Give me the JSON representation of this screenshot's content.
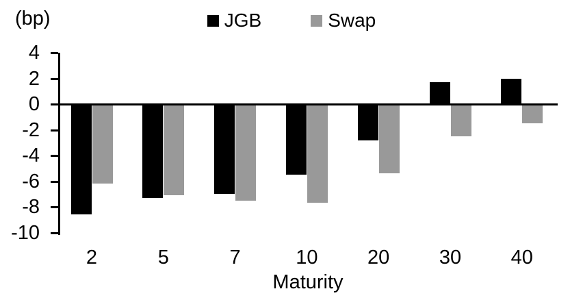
{
  "chart_data": {
    "type": "bar",
    "title": "",
    "unit_label": "(bp)",
    "xlabel": "Maturity",
    "categories": [
      "2",
      "5",
      "7",
      "10",
      "20",
      "30",
      "40"
    ],
    "series": [
      {
        "name": "JGB",
        "color": "#000000",
        "values": [
          -8.6,
          -7.3,
          -7.0,
          -5.5,
          -2.8,
          1.7,
          2.0
        ]
      },
      {
        "name": "Swap",
        "color": "#999999",
        "values": [
          -6.2,
          -7.1,
          -7.5,
          -7.7,
          -5.4,
          -2.5,
          -1.5
        ]
      }
    ],
    "y_ticks": [
      4,
      2,
      0,
      -2,
      -4,
      -6,
      -8,
      -10
    ],
    "ylim": [
      -10,
      4
    ],
    "grid": false,
    "legend_position": "top-center"
  }
}
